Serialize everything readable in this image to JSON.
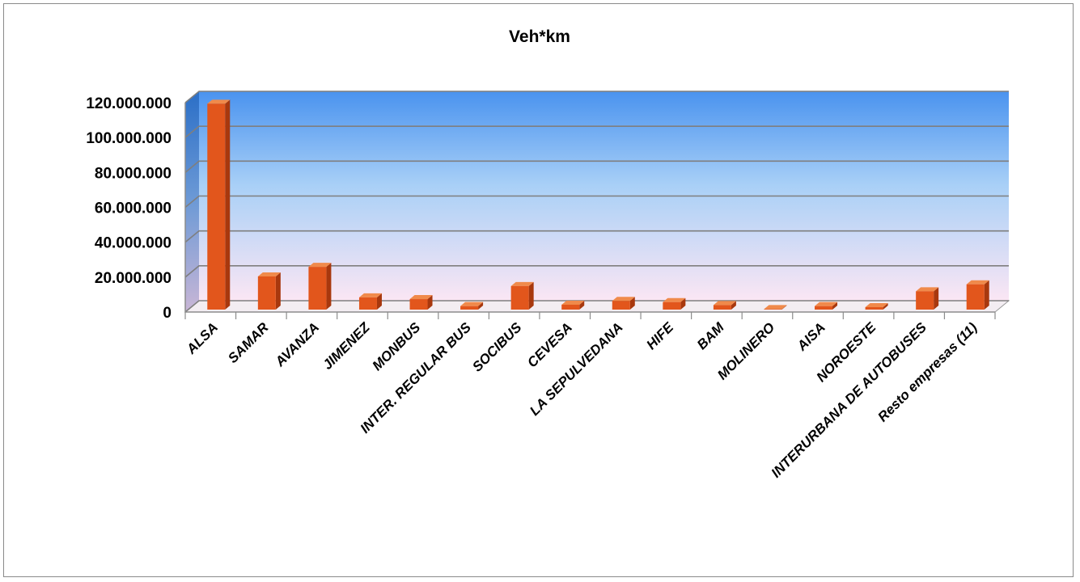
{
  "chart_data": {
    "type": "bar",
    "title": "Veh*km",
    "xlabel": "",
    "ylabel": "",
    "ylim": [
      0,
      120000000
    ],
    "yticks": [
      0,
      20000000,
      40000000,
      60000000,
      80000000,
      100000000,
      120000000
    ],
    "ytick_labels": [
      "0",
      "20.000.000",
      "40.000.000",
      "60.000.000",
      "80.000.000",
      "100.000.000",
      "120.000.000"
    ],
    "grid": true,
    "legend": "none",
    "style": "3d",
    "bar_color": "#e2561c",
    "categories": [
      "ALSA",
      "SAMAR",
      "AVANZA",
      "JIMENEZ",
      "MONBUS",
      "INTER. REGULAR BUS",
      "SOCIBUS",
      "CEVESA",
      "LA SEPULVEDANA",
      "HIFE",
      "BAM",
      "MOLINERO",
      "AISA",
      "NOROESTE",
      "INTERURBANA DE AUTOBUSES",
      "Resto empresas (11)"
    ],
    "series": [
      {
        "values": [
          118000000,
          19000000,
          24500000,
          7000000,
          6000000,
          2000000,
          13500000,
          2800000,
          5000000,
          4300000,
          2600000,
          300000,
          2000000,
          1400000,
          10500000,
          14500000
        ]
      }
    ]
  }
}
